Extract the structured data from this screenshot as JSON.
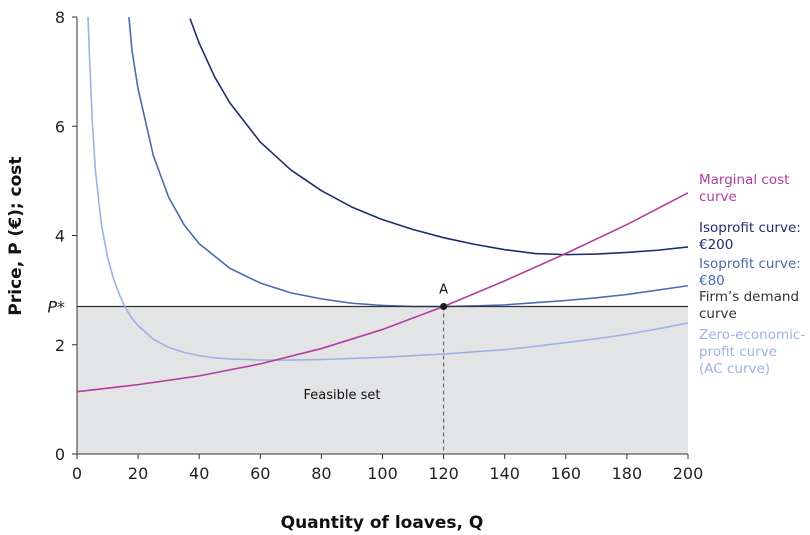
{
  "chart_data": {
    "type": "line",
    "xlabel": "Quantity of loaves, Q",
    "ylabel": "Price, P (€); cost",
    "xlim": [
      0,
      200
    ],
    "ylim": [
      0,
      8
    ],
    "x_ticks": [
      "0",
      "20",
      "40",
      "60",
      "80",
      "100",
      "120",
      "140",
      "160",
      "180",
      "200"
    ],
    "y_ticks": [
      "0",
      "2",
      "4",
      "6",
      "8"
    ],
    "p_star": {
      "label": "P*",
      "value": 2.7
    },
    "point": {
      "label": "A",
      "x": 120,
      "y": 2.7
    },
    "feasible_label": "Feasible set",
    "colors": {
      "isoprofit_200": "#1f2d6b",
      "isoprofit_80": "#4a6ab1",
      "ac": "#9fb2df",
      "mc": "#b53c9c",
      "demand": "#333333",
      "feasible": "#e3e4e6",
      "point": "#1a1a1a"
    },
    "series": [
      {
        "name": "Isoprofit curve: €200",
        "label_lines": [
          "Isoprofit curve:",
          "€200"
        ],
        "color": "#1f2d6b",
        "x": [
          37,
          40,
          45,
          50,
          60,
          70,
          80,
          90,
          100,
          110,
          120,
          130,
          140,
          150,
          160,
          170,
          180,
          190,
          200
        ],
        "y": [
          7.97,
          7.52,
          6.91,
          6.43,
          5.71,
          5.2,
          4.82,
          4.52,
          4.29,
          4.11,
          3.96,
          3.84,
          3.74,
          3.67,
          3.65,
          3.66,
          3.69,
          3.73,
          3.79
        ]
      },
      {
        "name": "Isoprofit curve: €80",
        "label_lines": [
          "Isoprofit curve:",
          "€80"
        ],
        "color": "#4a6ab1",
        "x": [
          17,
          18,
          20,
          25,
          30,
          35,
          40,
          50,
          60,
          70,
          80,
          90,
          100,
          110,
          120,
          130,
          140,
          150,
          160,
          170,
          180,
          190,
          200
        ],
        "y": [
          8.0,
          7.39,
          6.68,
          5.46,
          4.7,
          4.2,
          3.85,
          3.4,
          3.13,
          2.95,
          2.84,
          2.76,
          2.72,
          2.7,
          2.7,
          2.71,
          2.73,
          2.77,
          2.81,
          2.86,
          2.92,
          3.0,
          3.08
        ]
      },
      {
        "name": "Firm’s demand curve",
        "label_lines": [
          "Firm’s demand",
          "curve"
        ],
        "color": "#333333",
        "x": [
          0,
          200
        ],
        "y": [
          2.7,
          2.7
        ]
      },
      {
        "name": "Zero-economic-profit curve (AC curve)",
        "label_lines": [
          "Zero-economic-",
          "profit curve",
          "(AC curve)"
        ],
        "color": "#9fb2df",
        "x": [
          3.6,
          4,
          5,
          6,
          8,
          10,
          12,
          14,
          16,
          18,
          20,
          25,
          30,
          35,
          40,
          45,
          50,
          60,
          70,
          80,
          90,
          100,
          110,
          120,
          130,
          140,
          150,
          160,
          170,
          180,
          190,
          200
        ],
        "y": [
          8.0,
          7.4,
          6.1,
          5.2,
          4.2,
          3.6,
          3.2,
          2.9,
          2.66,
          2.48,
          2.35,
          2.1,
          1.95,
          1.86,
          1.8,
          1.76,
          1.74,
          1.72,
          1.72,
          1.73,
          1.75,
          1.77,
          1.8,
          1.83,
          1.87,
          1.91,
          1.97,
          2.04,
          2.11,
          2.19,
          2.29,
          2.4
        ]
      },
      {
        "name": "Marginal cost curve",
        "label_lines": [
          "Marginal cost",
          "curve"
        ],
        "color": "#b53c9c",
        "x": [
          0,
          20,
          40,
          60,
          80,
          100,
          120,
          140,
          160,
          180,
          200
        ],
        "y": [
          1.14,
          1.27,
          1.43,
          1.65,
          1.93,
          2.28,
          2.7,
          3.17,
          3.67,
          4.2,
          4.78
        ]
      }
    ]
  }
}
